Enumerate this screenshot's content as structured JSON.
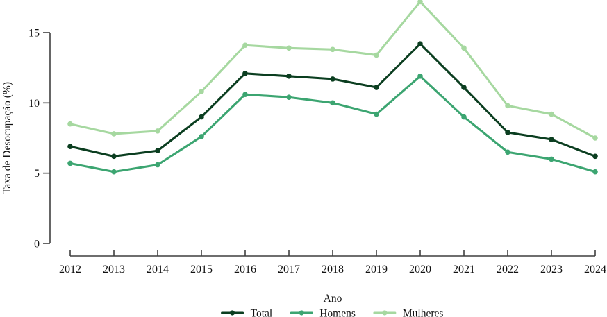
{
  "chart_data": {
    "type": "line",
    "title": "",
    "xlabel": "Ano",
    "ylabel": "Taxa de Desocupação (%)",
    "x": [
      2012,
      2013,
      2014,
      2015,
      2016,
      2017,
      2018,
      2019,
      2020,
      2021,
      2022,
      2023,
      2024
    ],
    "series": [
      {
        "name": "Total",
        "color": "#0b3e20",
        "values": [
          6.9,
          6.2,
          6.6,
          9.0,
          12.1,
          11.9,
          11.7,
          11.1,
          14.2,
          11.1,
          7.9,
          7.4,
          6.2
        ]
      },
      {
        "name": "Homens",
        "color": "#3ca571",
        "values": [
          5.7,
          5.1,
          5.6,
          7.6,
          10.6,
          10.4,
          10.0,
          9.2,
          11.9,
          9.0,
          6.5,
          6.0,
          5.1
        ]
      },
      {
        "name": "Mulheres",
        "color": "#a6d8a0",
        "values": [
          8.5,
          7.8,
          8.0,
          10.8,
          14.1,
          13.9,
          13.8,
          13.4,
          17.2,
          13.9,
          9.8,
          9.2,
          7.5
        ]
      }
    ],
    "ylim": [
      0,
      15
    ],
    "yticks": [
      0,
      5,
      10,
      15
    ],
    "xticks": [
      2012,
      2013,
      2014,
      2015,
      2016,
      2017,
      2018,
      2019,
      2020,
      2021,
      2022,
      2023,
      2024
    ],
    "grid": false,
    "legend_position": "bottom",
    "legend": [
      "Total",
      "Homens",
      "Mulheres"
    ],
    "axis_color": "#3f3f3f",
    "text_color": "#111111"
  }
}
